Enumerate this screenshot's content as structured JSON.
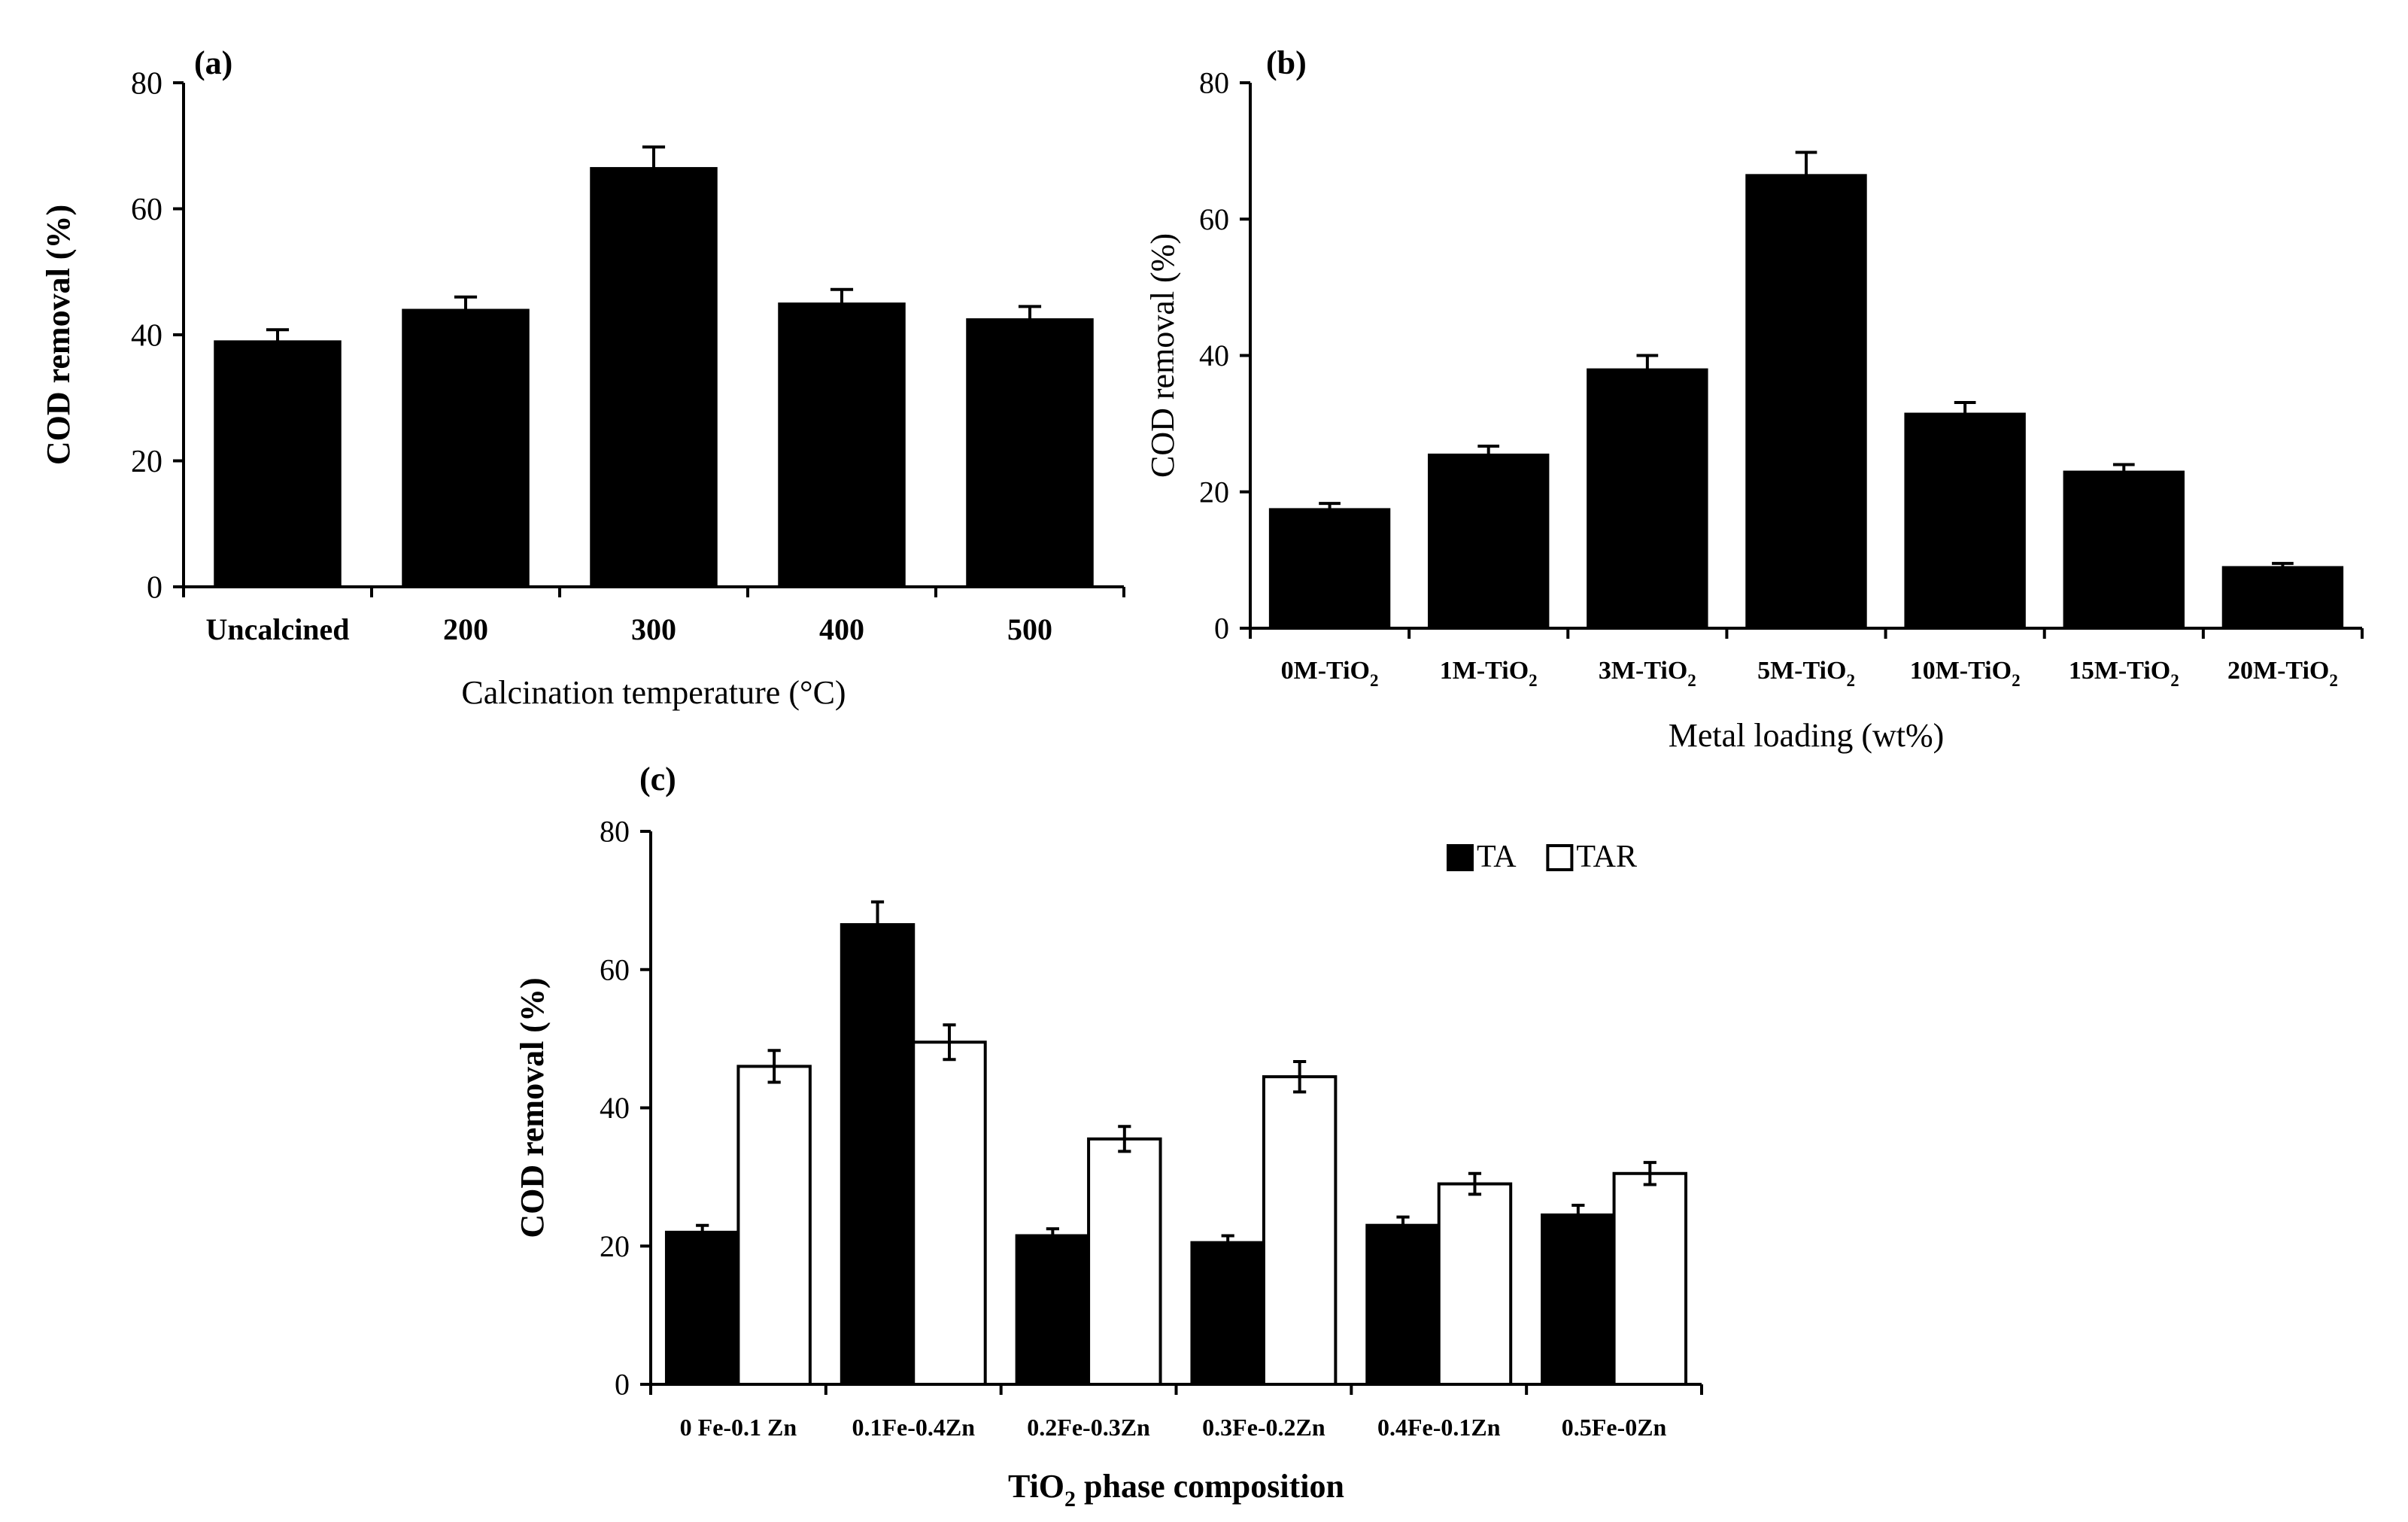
{
  "chart_data": [
    {
      "panel": "(a)",
      "type": "bar",
      "title": "",
      "xlabel": "Calcination temperature (°C)",
      "ylabel": "COD removal (%)",
      "ylim": [
        0,
        80
      ],
      "yticks": [
        "0",
        "20",
        "40",
        "60",
        "80"
      ],
      "ytick_values": [
        0,
        20,
        40,
        60,
        80
      ],
      "categories": [
        "Uncalcined",
        "200",
        "300",
        "400",
        "500"
      ],
      "series": [
        {
          "name": "COD removal",
          "color": "#000000",
          "values": [
            39,
            44,
            66.5,
            45,
            42.5
          ],
          "errors": [
            1.8,
            2.0,
            3.3,
            2.2,
            2.0
          ]
        }
      ],
      "grid": false,
      "legend": "none"
    },
    {
      "panel": "(b)",
      "type": "bar",
      "title": "",
      "xlabel": "Metal loading (wt%)",
      "ylabel": "COD removal (%)",
      "ylim": [
        0,
        80
      ],
      "yticks": [
        "0",
        "20",
        "40",
        "60",
        "80"
      ],
      "ytick_values": [
        0,
        20,
        40,
        60,
        80
      ],
      "categories": [
        {
          "base": "0M-TiO",
          "sub": "2"
        },
        {
          "base": "1M-TiO",
          "sub": "2"
        },
        {
          "base": "3M-TiO",
          "sub": "2"
        },
        {
          "base": "5M-TiO",
          "sub": "2"
        },
        {
          "base": "10M-TiO",
          "sub": "2"
        },
        {
          "base": "15M-TiO",
          "sub": "2"
        },
        {
          "base": "20M-TiO",
          "sub": "2"
        }
      ],
      "series": [
        {
          "name": "COD removal",
          "color": "#000000",
          "values": [
            17.5,
            25.5,
            38,
            66.5,
            31.5,
            23,
            9
          ],
          "errors": [
            0.8,
            1.2,
            2.0,
            3.3,
            1.6,
            1.0,
            0.5
          ]
        }
      ],
      "grid": false,
      "legend": "none"
    },
    {
      "panel": "(c)",
      "type": "bar",
      "title": "",
      "xlabel_base": "TiO",
      "xlabel_sub": "2",
      "xlabel_rest": " phase composition",
      "ylabel": "COD removal (%)",
      "ylim": [
        0,
        80
      ],
      "yticks": [
        "0",
        "20",
        "40",
        "60",
        "80"
      ],
      "ytick_values": [
        0,
        20,
        40,
        60,
        80
      ],
      "categories": [
        "0 Fe-0.1 Zn",
        "0.1Fe-0.4Zn",
        "0.2Fe-0.3Zn",
        "0.3Fe-0.2Zn",
        "0.4Fe-0.1Zn",
        "0.5Fe-0Zn"
      ],
      "series": [
        {
          "name": "TA",
          "color": "#000000",
          "values": [
            22,
            66.5,
            21.5,
            20.5,
            23,
            24.5
          ],
          "errors": [
            1.0,
            3.3,
            1.0,
            1.0,
            1.2,
            1.4
          ]
        },
        {
          "name": "TAR",
          "color": "#ffffff",
          "values": [
            46,
            49.5,
            35.5,
            44.5,
            29,
            30.5
          ],
          "errors": [
            2.3,
            2.5,
            1.8,
            2.2,
            1.5,
            1.6
          ]
        }
      ],
      "grid": false,
      "legend": "top-right"
    }
  ]
}
